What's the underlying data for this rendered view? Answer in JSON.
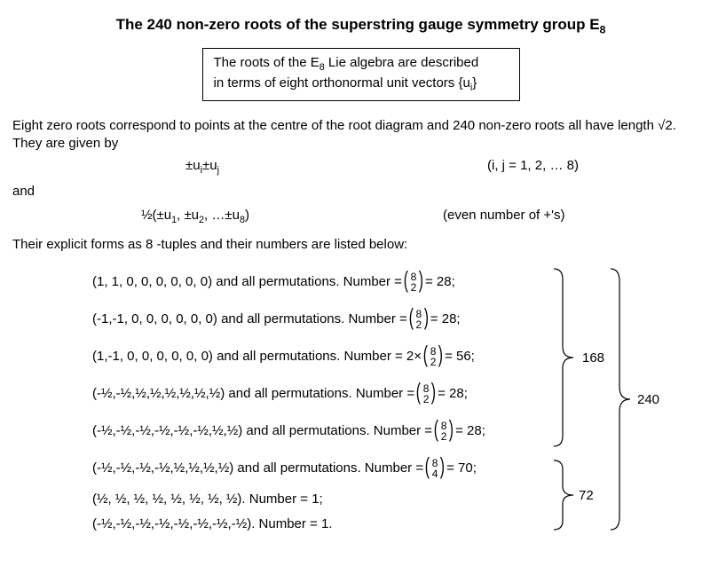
{
  "title": "The 240 non-zero roots of  the superstring gauge symmetry group E",
  "title_sub": "8",
  "box_line1_a": "The roots of the E",
  "box_line1_sub": "8",
  "box_line1_b": " Lie algebra are described",
  "box_line2": "in terms of eight orthonormal unit vectors {u",
  "box_line2_sub": "i",
  "box_line2_c": "}",
  "p1": "Eight zero roots correspond to points at the centre of the root diagram and 240 non-zero roots all have length √2. They are given by",
  "f1_left_a": "±u",
  "f1_left_sub1": "i",
  "f1_left_b": "±u",
  "f1_left_sub2": "j",
  "f1_right": "(i, j = 1, 2,  … 8)",
  "and": "and",
  "f2_left_a": "½(±u",
  "f2_left_s1": "1",
  "f2_left_b": ", ±u",
  "f2_left_s2": "2",
  "f2_left_c": ",  …±u",
  "f2_left_s3": "8",
  "f2_left_d": ")",
  "f2_right": "(even number of +'s)",
  "p2": "Their explicit forms as 8 -tuples and their numbers are listed below:",
  "roots": [
    {
      "tuple": "(1, 1, 0, 0, 0, 0, 0, 0) and all permutations. Number = ",
      "binom_n": "8",
      "binom_k": "2",
      "after": " = 28;"
    },
    {
      "tuple": "(-1,-1, 0, 0, 0, 0, 0, 0) and all permutations. Number = ",
      "binom_n": "8",
      "binom_k": "2",
      "after": " = 28;"
    },
    {
      "tuple": "(1,-1, 0, 0, 0, 0, 0, 0) and all permutations. Number = 2×",
      "binom_n": "8",
      "binom_k": "2",
      "after": " = 56;"
    },
    {
      "tuple": "(-½,-½,½,½,½,½,½,½) and all permutations. Number = ",
      "binom_n": "8",
      "binom_k": "2",
      "after": " = 28;"
    },
    {
      "tuple": "(-½,-½,-½,-½,-½,-½,½,½) and all permutations. Number = ",
      "binom_n": "8",
      "binom_k": "2",
      "after": " = 28;"
    },
    {
      "tuple": "(-½,-½,-½,-½,½,½,½,½) and all permutations. Number = ",
      "binom_n": "8",
      "binom_k": "4",
      "after": " = 70;"
    }
  ],
  "root7": "(½, ½, ½, ½, ½, ½, ½, ½). Number = 1;",
  "root8": "(-½,-½,-½,-½,-½,-½,-½,-½). Number = 1.",
  "brace168": "168",
  "brace72": "72",
  "brace240": "240",
  "colors": {
    "text": "#000000",
    "bg": "#ffffff",
    "border": "#000000"
  }
}
